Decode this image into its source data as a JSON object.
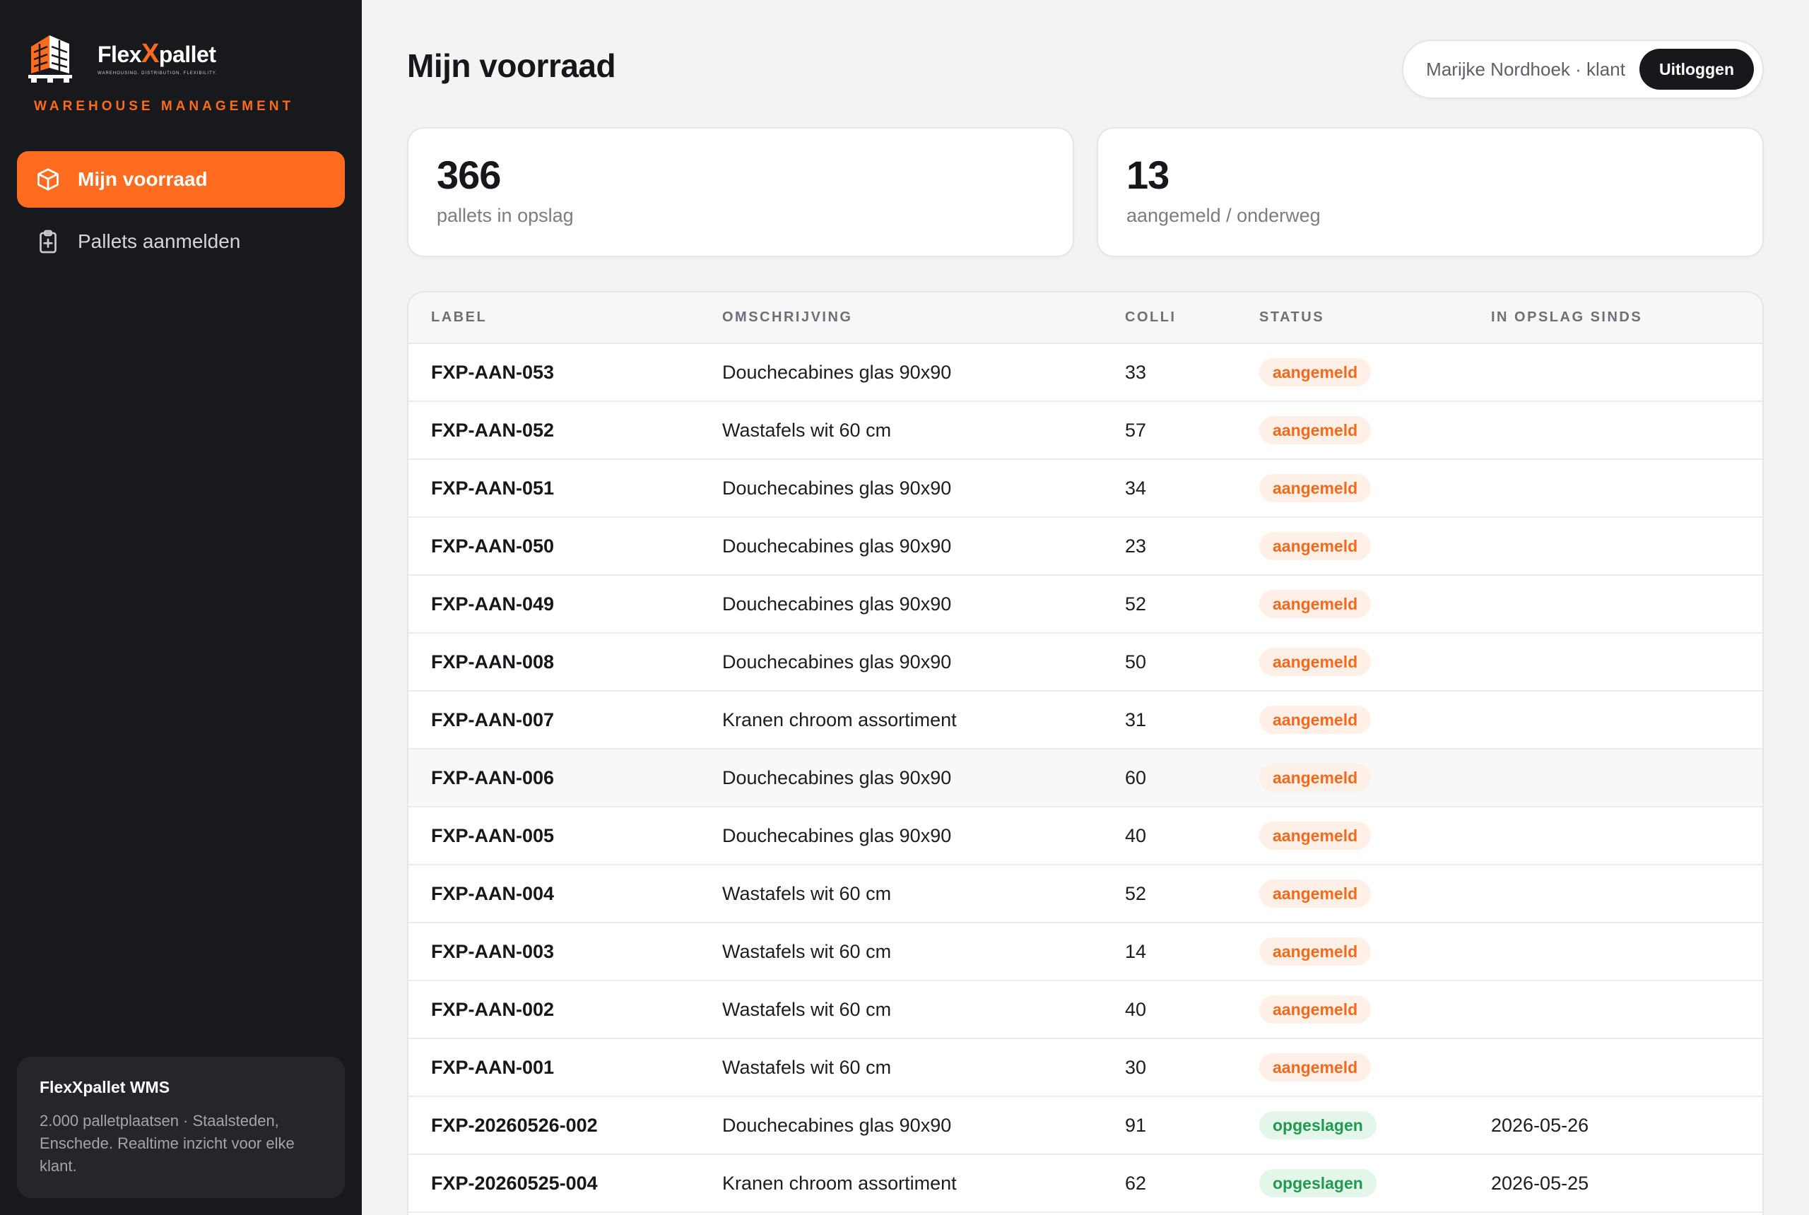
{
  "brand": {
    "name_part1": "Flex",
    "name_x": "X",
    "name_part2": "pallet",
    "tagline": "WAREHOUSING. DISTRIBUTION. FLEXIBILITY.",
    "subtitle": "WAREHOUSE MANAGEMENT",
    "accent_color": "#ff6b1f"
  },
  "nav": {
    "items": [
      {
        "label": "Mijn voorraad",
        "icon": "box-icon",
        "active": true
      },
      {
        "label": "Pallets aanmelden",
        "icon": "clipboard-plus-icon",
        "active": false
      }
    ]
  },
  "info": {
    "title": "FlexXpallet WMS",
    "text": "2.000 palletplaatsen · Staalsteden, Enschede. Realtime inzicht voor elke klant."
  },
  "page": {
    "title": "Mijn voorraad"
  },
  "user": {
    "label": "Marijke Nordhoek · klant",
    "logout": "Uitloggen"
  },
  "stats": [
    {
      "value": "366",
      "label": "pallets in opslag"
    },
    {
      "value": "13",
      "label": "aangemeld / onderweg"
    }
  ],
  "table": {
    "headers": [
      "LABEL",
      "OMSCHRIJVING",
      "COLLI",
      "STATUS",
      "IN OPSLAG SINDS"
    ],
    "rows": [
      {
        "label": "FXP-AAN-053",
        "desc": "Douchecabines glas 90x90",
        "colli": "33",
        "status": "aangemeld",
        "since": ""
      },
      {
        "label": "FXP-AAN-052",
        "desc": "Wastafels wit 60 cm",
        "colli": "57",
        "status": "aangemeld",
        "since": ""
      },
      {
        "label": "FXP-AAN-051",
        "desc": "Douchecabines glas 90x90",
        "colli": "34",
        "status": "aangemeld",
        "since": ""
      },
      {
        "label": "FXP-AAN-050",
        "desc": "Douchecabines glas 90x90",
        "colli": "23",
        "status": "aangemeld",
        "since": ""
      },
      {
        "label": "FXP-AAN-049",
        "desc": "Douchecabines glas 90x90",
        "colli": "52",
        "status": "aangemeld",
        "since": ""
      },
      {
        "label": "FXP-AAN-008",
        "desc": "Douchecabines glas 90x90",
        "colli": "50",
        "status": "aangemeld",
        "since": ""
      },
      {
        "label": "FXP-AAN-007",
        "desc": "Kranen chroom assortiment",
        "colli": "31",
        "status": "aangemeld",
        "since": ""
      },
      {
        "label": "FXP-AAN-006",
        "desc": "Douchecabines glas 90x90",
        "colli": "60",
        "status": "aangemeld",
        "since": ""
      },
      {
        "label": "FXP-AAN-005",
        "desc": "Douchecabines glas 90x90",
        "colli": "40",
        "status": "aangemeld",
        "since": ""
      },
      {
        "label": "FXP-AAN-004",
        "desc": "Wastafels wit 60 cm",
        "colli": "52",
        "status": "aangemeld",
        "since": ""
      },
      {
        "label": "FXP-AAN-003",
        "desc": "Wastafels wit 60 cm",
        "colli": "14",
        "status": "aangemeld",
        "since": ""
      },
      {
        "label": "FXP-AAN-002",
        "desc": "Wastafels wit 60 cm",
        "colli": "40",
        "status": "aangemeld",
        "since": ""
      },
      {
        "label": "FXP-AAN-001",
        "desc": "Wastafels wit 60 cm",
        "colli": "30",
        "status": "aangemeld",
        "since": ""
      },
      {
        "label": "FXP-20260526-002",
        "desc": "Douchecabines glas 90x90",
        "colli": "91",
        "status": "opgeslagen",
        "since": "2026-05-26"
      },
      {
        "label": "FXP-20260525-004",
        "desc": "Kranen chroom assortiment",
        "colli": "62",
        "status": "opgeslagen",
        "since": "2026-05-25"
      },
      {
        "label": "",
        "desc": "",
        "colli": "",
        "status": "",
        "since": ""
      }
    ]
  }
}
